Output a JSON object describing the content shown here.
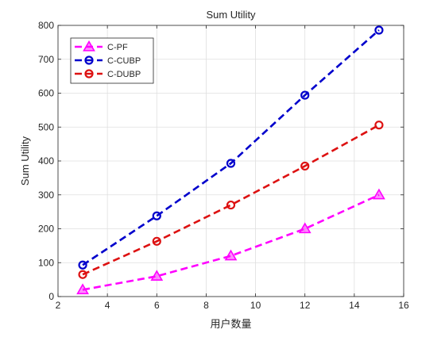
{
  "chart_data": {
    "type": "line",
    "title": "Sum Utility",
    "xlabel": "用户数量",
    "ylabel": "Sum Utility",
    "xlim": [
      2,
      16
    ],
    "ylim": [
      0,
      800
    ],
    "xticks": [
      "2",
      "4",
      "6",
      "8",
      "10",
      "12",
      "14",
      "16"
    ],
    "yticks": [
      "0",
      "100",
      "200",
      "300",
      "400",
      "500",
      "600",
      "700",
      "800"
    ],
    "grid": true,
    "legend_position": "top-left",
    "series": [
      {
        "name": "C-PF",
        "color": "#ff00ff",
        "marker": "triangle",
        "x": [
          3,
          6,
          9,
          12,
          15
        ],
        "y": [
          20,
          60,
          120,
          200,
          300
        ]
      },
      {
        "name": "C-CUBP",
        "color": "#0000cc",
        "marker": "circle",
        "x": [
          3,
          6,
          9,
          12,
          15
        ],
        "y": [
          93,
          238,
          393,
          594,
          786
        ]
      },
      {
        "name": "C-DUBP",
        "color": "#dd1111",
        "marker": "circle",
        "x": [
          3,
          6,
          9,
          12,
          15
        ],
        "y": [
          65,
          163,
          270,
          385,
          506
        ]
      }
    ]
  }
}
